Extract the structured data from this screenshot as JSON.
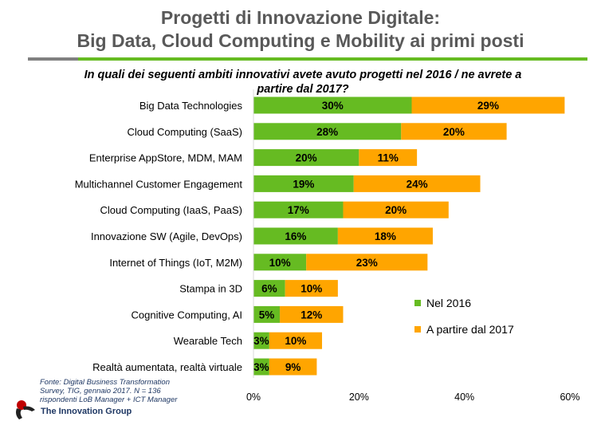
{
  "header": {
    "title_line1": "Progetti di Innovazione Digitale:",
    "title_line2": "Big Data, Cloud Computing e Mobility ai primi posti"
  },
  "colors": {
    "green": "#66bb22",
    "orange": "#ffa500",
    "grey_rule": "#808080"
  },
  "chart_data": {
    "type": "bar",
    "orientation": "horizontal",
    "stacked": true,
    "title": "In quali dei seguenti ambiti innovativi avete avuto progetti nel 2016 / ne avrete a partire dal 2017?",
    "title_line1": "In quali dei seguenti ambiti innovativi avete avuto progetti nel 2016 / ne avrete a",
    "title_line2": "partire dal 2017?",
    "categories": [
      "Big Data Technologies",
      "Cloud Computing (SaaS)",
      "Enterprise AppStore, MDM, MAM",
      "Multichannel Customer Engagement",
      "Cloud Computing (IaaS, PaaS)",
      "Innovazione SW  (Agile, DevOps)",
      "Internet of Things (IoT, M2M)",
      "Stampa in 3D",
      "Cognitive Computing, AI",
      "Wearable Tech",
      "Realtà aumentata, realtà virtuale"
    ],
    "series": [
      {
        "name": "Nel 2016",
        "color": "#66bb22",
        "values": [
          30,
          28,
          20,
          19,
          17,
          16,
          10,
          6,
          5,
          3,
          3
        ]
      },
      {
        "name": "A partire dal 2017",
        "color": "#ffa500",
        "values": [
          29,
          20,
          11,
          24,
          20,
          18,
          23,
          10,
          12,
          10,
          9
        ]
      }
    ],
    "xlim": [
      0,
      60
    ],
    "xticks": [
      0,
      20,
      40,
      60
    ],
    "xtick_labels": [
      "0%",
      "20%",
      "40%",
      "60%"
    ],
    "legend_position": "right, lower half",
    "grid": false
  },
  "footer": {
    "source_line1": "Fonte: Digital  Business Transformation",
    "source_line2": "Survey, TIG, gennaio 2017. N =  136",
    "source_line3": "rispondenti LoB Manager + ICT Manager",
    "logo_text": "The Innovation Group"
  }
}
